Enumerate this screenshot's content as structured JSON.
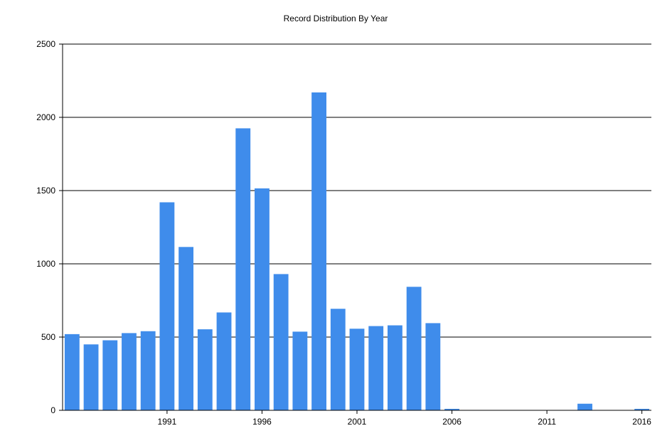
{
  "chart_data": {
    "type": "bar",
    "title": "Record Distribution By Year",
    "xlabel": "",
    "ylabel": "",
    "x": [
      1986,
      1987,
      1988,
      1989,
      1990,
      1991,
      1992,
      1993,
      1994,
      1995,
      1996,
      1997,
      1998,
      1999,
      2000,
      2001,
      2002,
      2003,
      2004,
      2005,
      2006,
      2007,
      2008,
      2009,
      2010,
      2011,
      2012,
      2013,
      2014,
      2015,
      2016
    ],
    "values": [
      520,
      450,
      478,
      527,
      540,
      1420,
      1115,
      553,
      668,
      1925,
      1515,
      930,
      537,
      2170,
      693,
      557,
      575,
      580,
      843,
      595,
      10,
      0,
      0,
      0,
      0,
      0,
      0,
      45,
      0,
      0,
      10
    ],
    "x_ticks": [
      1991,
      1996,
      2001,
      2006,
      2011,
      2016
    ],
    "y_ticks": [
      0,
      500,
      1000,
      1500,
      2000,
      2500
    ],
    "xlim": [
      1985.5,
      2016.5
    ],
    "ylim": [
      0,
      2500
    ],
    "grid": true,
    "bar_color": "#3f8ceb"
  }
}
